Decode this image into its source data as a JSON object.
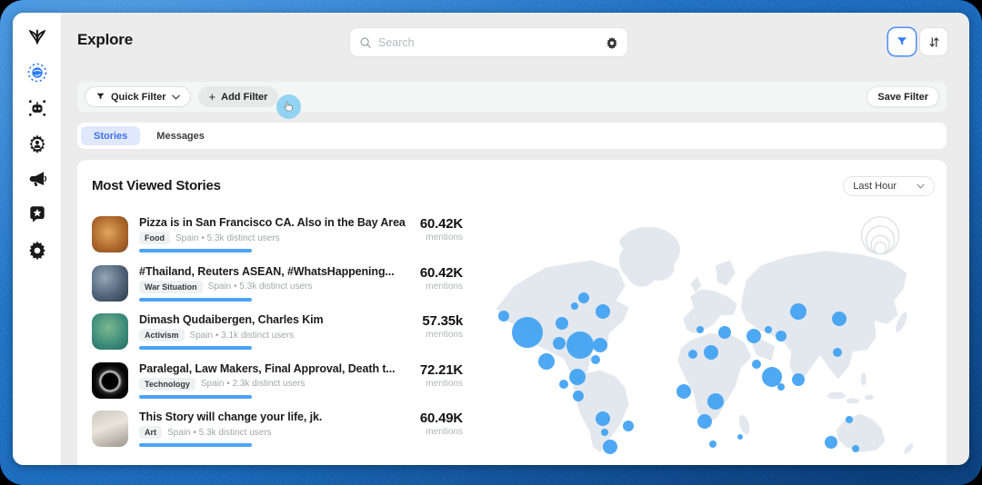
{
  "header": {
    "title": "Explore",
    "search_placeholder": "Search"
  },
  "filter_bar": {
    "quick_filter_label": "Quick Filter",
    "add_filter_plus": "+",
    "add_filter_label": "Add Filter",
    "save_filter_label": "Save Filter"
  },
  "tabs": {
    "stories": "Stories",
    "messages": "Messages"
  },
  "panel": {
    "title": "Most Viewed Stories",
    "time_range": "Last Hour",
    "mentions_label": "mentions"
  },
  "stories": [
    {
      "title": "Pizza is in San Francisco CA. Also in the Bay Area",
      "tag": "Food",
      "meta": "Spain • 5.3k distinct users",
      "mentions": "60.42K",
      "image": "pizza"
    },
    {
      "title": "#Thailand, Reuters ASEAN, #WhatsHappening...",
      "tag": "War Situation",
      "meta": "Spain • 5.3k distinct users",
      "mentions": "60.42K",
      "image": "earth-from-space"
    },
    {
      "title": "Dimash Qudaibergen, Charles Kim",
      "tag": "Activism",
      "meta": "Spain • 3.1k distinct users",
      "mentions": "57.35k",
      "image": "sea-turtle"
    },
    {
      "title": "Paralegal, Law Makers, Final Approval, Death t...",
      "tag": "Technology",
      "meta": "Spain • 2.3k distinct users",
      "mentions": "72.21K",
      "image": "solar-eclipse"
    },
    {
      "title": "This Story will change your life, jk.",
      "tag": "Art",
      "meta": "Spain • 5.3k distinct users",
      "mentions": "60.49K",
      "image": "laptop"
    }
  ],
  "sidebar": {
    "items": [
      "logo",
      "explore-globe",
      "bot",
      "agent-settings",
      "megaphone",
      "chat-star",
      "settings"
    ],
    "active_item": "explore-globe"
  },
  "colors": {
    "accent_blue": "#2f7df6",
    "bubble_blue": "#41a1f3",
    "progress_blue": "#4ba3f5",
    "tab_active_bg": "#dfe8fc",
    "tab_active_text": "#4070e8",
    "frame_blue": "#1a6ec4",
    "map_land": "#e3e8ee"
  },
  "chart_data": {
    "type": "map-bubbles",
    "title": "Most Viewed Stories mention volume by location",
    "legend": "concentric-circle size scale, top right",
    "bubble_color": "#41a1f3",
    "bubbles": [
      {
        "x": 6.3,
        "y": 41.9,
        "r": 6
      },
      {
        "x": 11.5,
        "y": 48.5,
        "r": 17
      },
      {
        "x": 18.8,
        "y": 44.8,
        "r": 7
      },
      {
        "x": 23.5,
        "y": 34.4,
        "r": 6
      },
      {
        "x": 21.5,
        "y": 37.8,
        "r": 4
      },
      {
        "x": 27.5,
        "y": 40.0,
        "r": 8
      },
      {
        "x": 22.7,
        "y": 53.7,
        "r": 15
      },
      {
        "x": 26.9,
        "y": 53.7,
        "r": 8
      },
      {
        "x": 18.3,
        "y": 53.0,
        "r": 7
      },
      {
        "x": 15.6,
        "y": 60.4,
        "r": 9
      },
      {
        "x": 26.0,
        "y": 59.6,
        "r": 5
      },
      {
        "x": 22.1,
        "y": 66.7,
        "r": 9
      },
      {
        "x": 19.2,
        "y": 69.6,
        "r": 5
      },
      {
        "x": 22.3,
        "y": 74.1,
        "r": 6
      },
      {
        "x": 27.5,
        "y": 83.3,
        "r": 8
      },
      {
        "x": 27.9,
        "y": 88.9,
        "r": 4
      },
      {
        "x": 32.9,
        "y": 86.3,
        "r": 6
      },
      {
        "x": 29.0,
        "y": 94.8,
        "r": 8
      },
      {
        "x": 48.3,
        "y": 47.4,
        "r": 4
      },
      {
        "x": 53.5,
        "y": 48.5,
        "r": 7
      },
      {
        "x": 46.7,
        "y": 57.4,
        "r": 5
      },
      {
        "x": 50.6,
        "y": 56.7,
        "r": 8
      },
      {
        "x": 59.6,
        "y": 50.0,
        "r": 8
      },
      {
        "x": 62.7,
        "y": 47.4,
        "r": 4
      },
      {
        "x": 65.6,
        "y": 50.0,
        "r": 6
      },
      {
        "x": 69.2,
        "y": 40.0,
        "r": 9
      },
      {
        "x": 77.9,
        "y": 43.0,
        "r": 8
      },
      {
        "x": 60.2,
        "y": 61.5,
        "r": 5
      },
      {
        "x": 63.5,
        "y": 66.7,
        "r": 11
      },
      {
        "x": 65.6,
        "y": 70.7,
        "r": 4
      },
      {
        "x": 69.2,
        "y": 67.8,
        "r": 7
      },
      {
        "x": 77.5,
        "y": 56.7,
        "r": 5
      },
      {
        "x": 44.8,
        "y": 72.6,
        "r": 8
      },
      {
        "x": 51.5,
        "y": 76.3,
        "r": 9
      },
      {
        "x": 49.2,
        "y": 84.4,
        "r": 8
      },
      {
        "x": 51.0,
        "y": 93.7,
        "r": 4
      },
      {
        "x": 56.7,
        "y": 90.7,
        "r": 3
      },
      {
        "x": 80.0,
        "y": 83.7,
        "r": 4
      },
      {
        "x": 76.2,
        "y": 93.0,
        "r": 7
      },
      {
        "x": 81.3,
        "y": 95.6,
        "r": 4
      }
    ]
  }
}
